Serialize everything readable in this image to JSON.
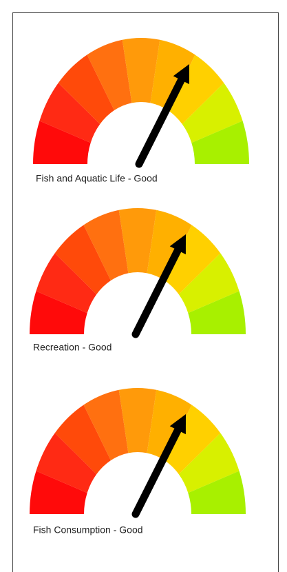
{
  "gauges": [
    {
      "label": "Fish and Aquatic Life - Good"
    },
    {
      "label": "Recreation - Good"
    },
    {
      "label": "Fish Consumption - Good"
    }
  ]
}
